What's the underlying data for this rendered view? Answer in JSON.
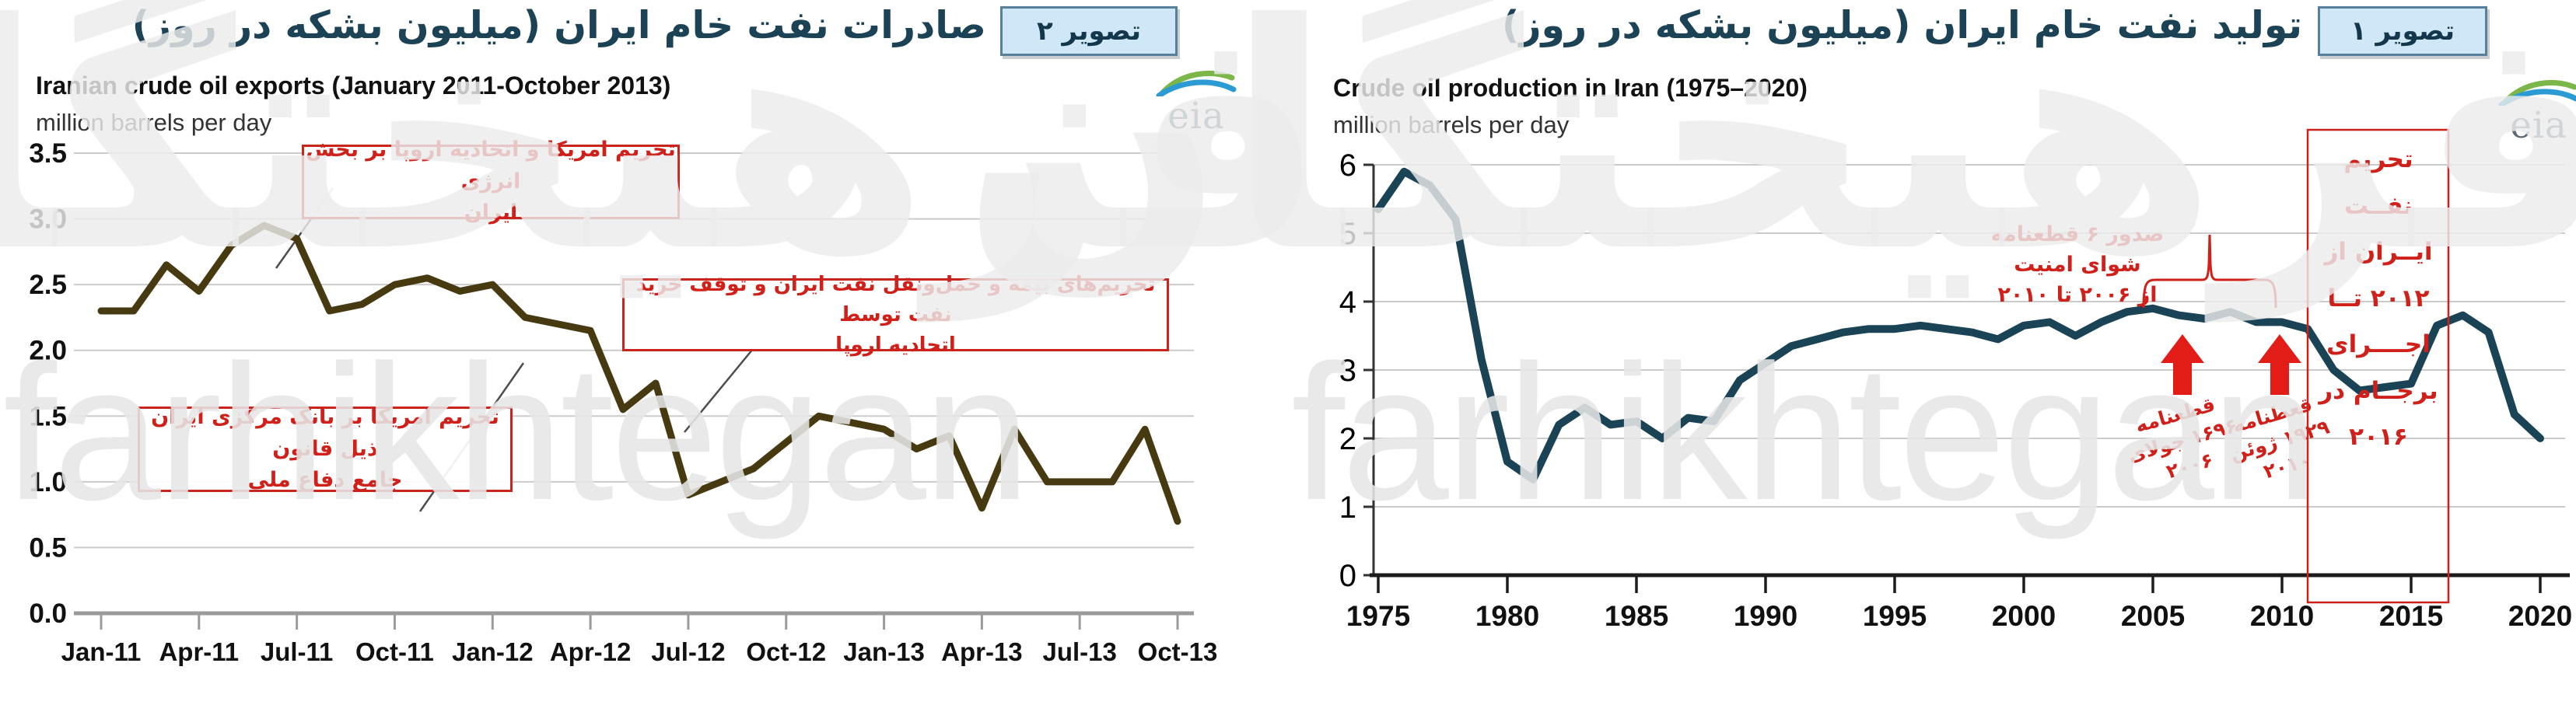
{
  "watermark": {
    "latin": "farhikhtegan",
    "persian": "فرهیختگان"
  },
  "colors": {
    "exports_line": "#473a10",
    "production_line": "#1b4356",
    "annotation_red": "#d0201a",
    "title_navy": "#1c4355",
    "badge_bg": "#cfe7f6",
    "grid_gray": "#cbcbcb"
  },
  "panels": [
    {
      "id": "exports",
      "badge": "تصویر ۲",
      "title": "صادرات نفت خام ایران (میلیون بشکه در روز)",
      "eia": "eia"
    },
    {
      "id": "production",
      "badge": "تصویر ۱",
      "title": "تولید نفت خام ایران (میلیون بشکه در روز)",
      "eia": "eia"
    }
  ],
  "chart_data": [
    {
      "type": "line",
      "title": "Iranian crude oil exports (January 2011-October 2013)",
      "units_label": "million barrels per day",
      "xlabel": "",
      "ylabel": "million barrels per day",
      "ylim": [
        0,
        3.5
      ],
      "ytick_step": 0.5,
      "xtick_every": 3,
      "grid": true,
      "legend": "none",
      "categories": [
        "Jan-11",
        "Feb-11",
        "Mar-11",
        "Apr-11",
        "May-11",
        "Jun-11",
        "Jul-11",
        "Aug-11",
        "Sep-11",
        "Oct-11",
        "Nov-11",
        "Dec-11",
        "Jan-12",
        "Feb-12",
        "Mar-12",
        "Apr-12",
        "May-12",
        "Jun-12",
        "Jul-12",
        "Aug-12",
        "Sep-12",
        "Oct-12",
        "Nov-12",
        "Dec-12",
        "Jan-13",
        "Feb-13",
        "Mar-13",
        "Apr-13",
        "May-13",
        "Jun-13",
        "Jul-13",
        "Aug-13",
        "Sep-13",
        "Oct-13"
      ],
      "values": [
        2.3,
        2.3,
        2.65,
        2.45,
        2.8,
        2.95,
        2.85,
        2.3,
        2.35,
        2.5,
        2.55,
        2.45,
        2.5,
        2.25,
        2.2,
        2.15,
        1.55,
        1.75,
        0.9,
        1.0,
        1.1,
        1.3,
        1.5,
        1.45,
        1.4,
        1.25,
        1.35,
        0.8,
        1.4,
        1.0,
        1.0,
        1.0,
        1.4,
        0.7
      ],
      "line_color": "#473a10",
      "annotations": [
        {
          "name": "us-eu-energy-sector-sanctions",
          "lines": [
            "تحریم امریکا و اتحادیه اروپا بر بخش انرژی",
            "ایران"
          ]
        },
        {
          "name": "insurance-shipping-sanctions-eu-purchase-halt",
          "lines": [
            "تحریم‌های بیمه و حمل‌ونقل نفت ایران و توقف خرید نفت توسط",
            "اتحادیه اروپا"
          ]
        },
        {
          "name": "us-central-bank-ndaa-sanctions",
          "lines": [
            "تحریم امریکا بر بانک مرکزی ایران ذیل قانون",
            "جامع دفاع ملی"
          ]
        }
      ]
    },
    {
      "type": "line",
      "title": "Crude oil production in Iran (1975–2020)",
      "units_label": "million barrels per day",
      "xlabel": "",
      "ylabel": "million barrels per day",
      "ylim": [
        0,
        6
      ],
      "ytick_step": 1,
      "xtick_every": 5,
      "grid": true,
      "legend": "none",
      "x": [
        1975,
        1976,
        1977,
        1978,
        1979,
        1980,
        1981,
        1982,
        1983,
        1984,
        1985,
        1986,
        1987,
        1988,
        1989,
        1990,
        1991,
        1992,
        1993,
        1994,
        1995,
        1996,
        1997,
        1998,
        1999,
        2000,
        2001,
        2002,
        2003,
        2004,
        2005,
        2006,
        2007,
        2008,
        2009,
        2010,
        2011,
        2012,
        2013,
        2014,
        2015,
        2016,
        2017,
        2018,
        2019,
        2020
      ],
      "values": [
        5.35,
        5.9,
        5.7,
        5.2,
        3.15,
        1.66,
        1.4,
        2.2,
        2.45,
        2.2,
        2.25,
        2.0,
        2.3,
        2.25,
        2.85,
        3.1,
        3.35,
        3.45,
        3.55,
        3.6,
        3.6,
        3.65,
        3.6,
        3.55,
        3.45,
        3.65,
        3.7,
        3.5,
        3.7,
        3.85,
        3.9,
        3.8,
        3.75,
        3.85,
        3.7,
        3.7,
        3.6,
        3.0,
        2.7,
        2.75,
        2.8,
        3.65,
        3.8,
        3.55,
        2.35,
        2.0
      ],
      "line_color": "#1b4356",
      "annotations": [
        {
          "name": "unsc-six-resolutions",
          "lines": [
            "صدور ۶ قطعنامه شوای امنیت",
            "از ۲۰۰۶ تا ۲۰۱۰"
          ]
        },
        {
          "name": "resolution-1696-july-2006",
          "lines": [
            "قطعنامه",
            "۱۶۹۶ جولای",
            "۲۰۰۶"
          ]
        },
        {
          "name": "resolution-1929-june-2010",
          "lines": [
            "قعطنامه",
            "۱۹۲۹ ژوئن",
            "۲۰۱۰"
          ]
        },
        {
          "name": "oil-embargo-2012-until-jcpoa-2016",
          "lines": [
            "تحریم نفــت",
            "ایــران از",
            "۲۰۱۲ تــا",
            "اجــــرای",
            "برجــام در",
            "۲۰۱۶"
          ]
        }
      ]
    }
  ]
}
